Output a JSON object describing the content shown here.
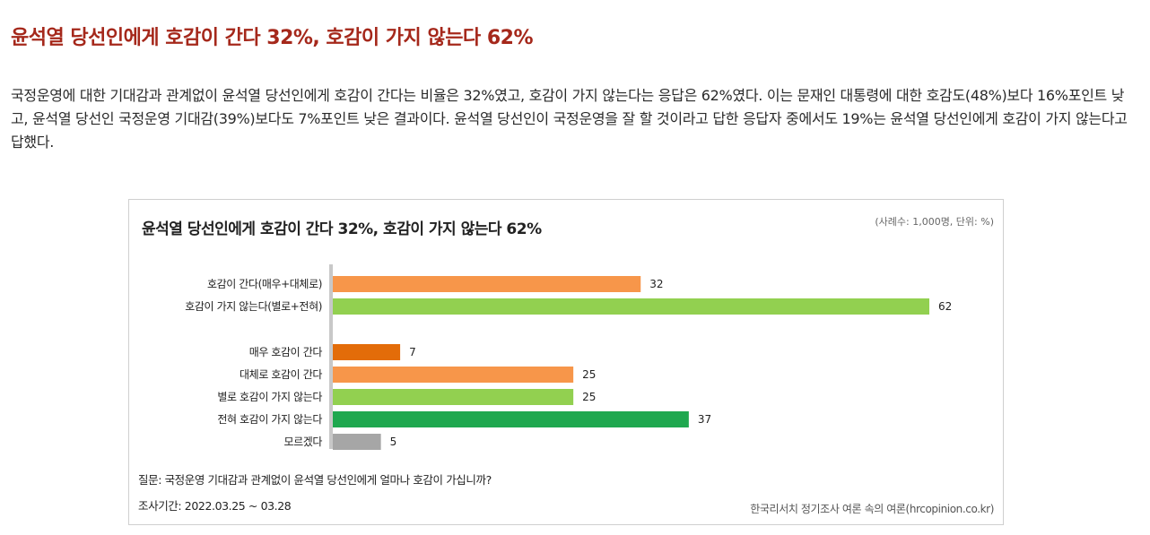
{
  "headline": "윤석열 당선인에게 호감이 간다 32%, 호감이 가지 않는다 62%",
  "body_text": "국정운영에 대한 기대감과 관계없이 윤석열 당선인에게 호감이 간다는 비율은 32%였고, 호감이 가지 않는다는 응답은 62%였다. 이는 문재인 대통령에 대한 호감도(48%)보다 16%포인트 낮고, 윤석열 당선인 국정운영 기대감(39%)보다도 7%포인트 낮은 결과이다. 윤석열 당선인이 국정운영을 잘 할 것이라고 답한 응답자 중에서도 19%는 윤석열 당선인에게 호감이 가지 않는다고 답했다.",
  "chart": {
    "note": "(사례수: 1,000명, 단위: %)",
    "question": "질문: 국정운영 기대감과 관계없이 윤석열 당선인에게 얼마나 호감이 가십니까?",
    "period": "조사기간: 2022.03.25 ~ 03.28",
    "source": "한국리서치 정기조사 여론 속의 여론(hrcopinion.co.kr)"
  },
  "chart_data": {
    "type": "bar",
    "orientation": "horizontal",
    "title": "윤석열 당선인에게 호감이 간다 32%, 호감이 가지 않는다 62%",
    "unit": "%",
    "xlim": [
      0,
      62
    ],
    "categories": [
      "호감이 간다(매우+대체로)",
      "호감이 가지 않는다(별로+전혀)",
      "매우 호감이 간다",
      "대체로 호감이 간다",
      "별로 호감이 가지 않는다",
      "전혀 호감이 가지 않는다",
      "모르겠다"
    ],
    "values": [
      32,
      62,
      7,
      25,
      25,
      37,
      5
    ],
    "colors": [
      "#f7964a",
      "#92d050",
      "#e36c09",
      "#f7964a",
      "#92d050",
      "#1fa84f",
      "#a6a6a6"
    ]
  }
}
